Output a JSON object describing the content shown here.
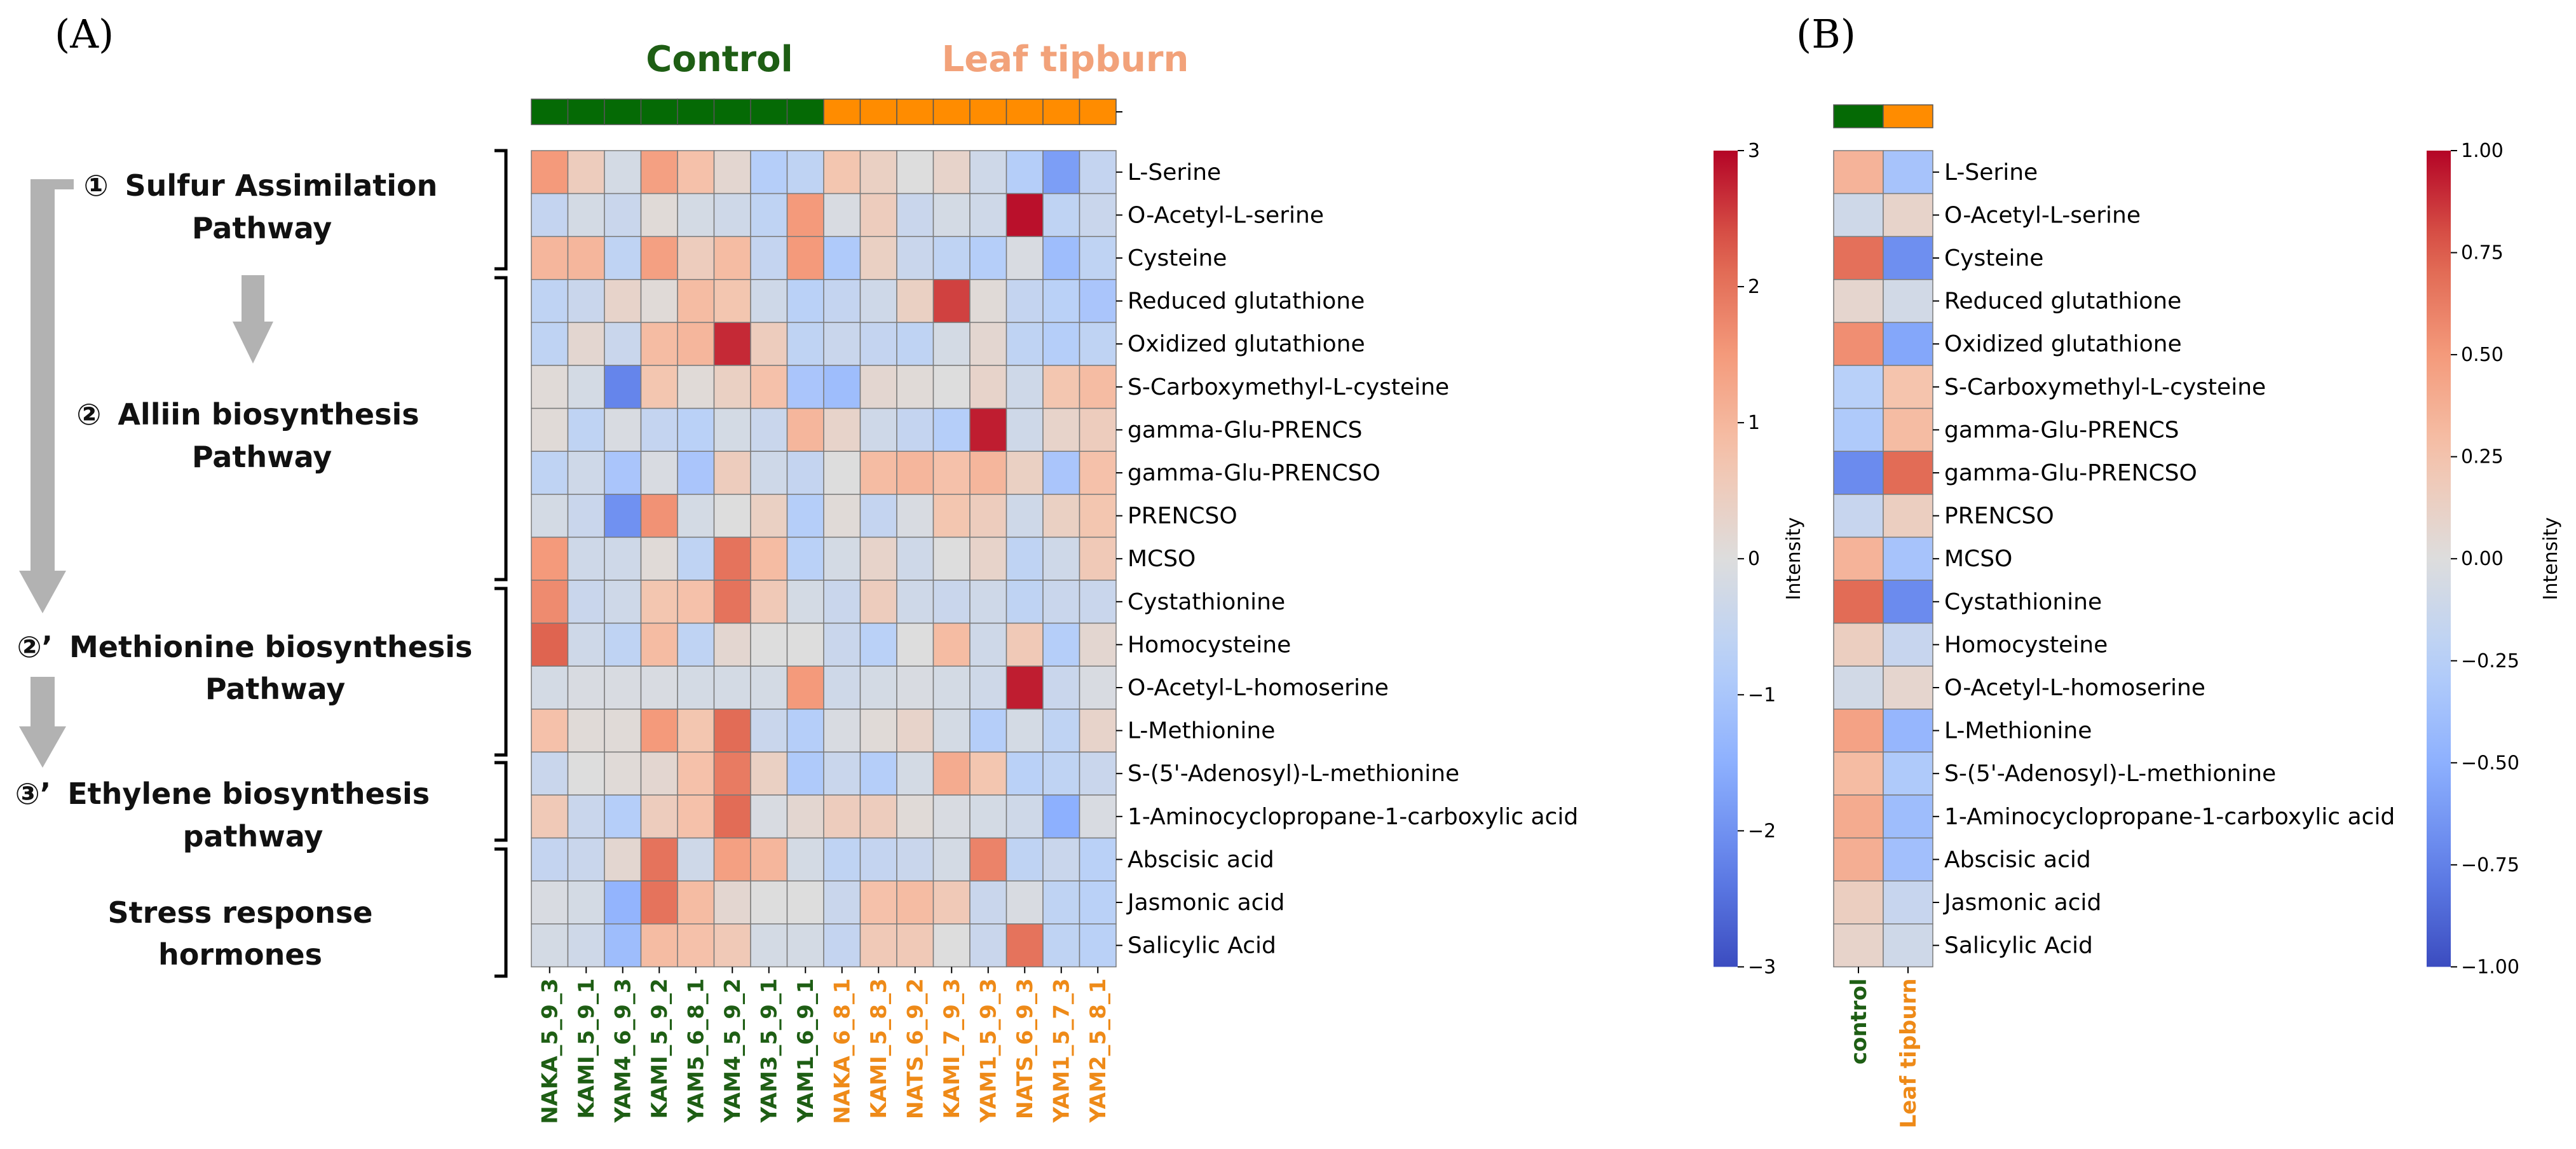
{
  "panels": {
    "a": "(A)",
    "b": "(B)"
  },
  "groups": {
    "control": "Control",
    "tipburn": "Leaf tipburn"
  },
  "colors": {
    "control": "#1e5e14",
    "control_bar": "#056a05",
    "tipburn_text": "#f2a27a",
    "tipburn_bar": "#ff8c00",
    "tipburn_label": "#ee8a18",
    "arrow": "#b2b2b2"
  },
  "pathways": [
    {
      "number": "①",
      "line1": "Sulfur Assimilation",
      "line2": "Pathway"
    },
    {
      "number": "②",
      "line1": "Alliin  biosynthesis",
      "line2": "Pathway"
    },
    {
      "number": "②’",
      "line1": "Methionine biosynthesis",
      "line2": "Pathway"
    },
    {
      "number": "③’",
      "line1": "Ethylene biosynthesis",
      "line2": "pathway"
    },
    {
      "number": "",
      "line1": "Stress response",
      "line2": "hormones"
    }
  ],
  "chart_data": [
    {
      "type": "heatmap",
      "panel": "A",
      "columns": [
        "NAKA_5_9_3",
        "KAMI_5_9_1",
        "YAM4_6_9_3",
        "KAMI_5_9_2",
        "YAM5_6_8_1",
        "YAM4_5_9_2",
        "YAM3_5_9_1",
        "YAM1_6_9_1",
        "NAKA_6_8_1",
        "KAMI_5_8_3",
        "NATS_6_9_2",
        "KAMI_7_9_3",
        "YAM1_5_9_3",
        "NATS_6_9_3",
        "YAM1_5_7_3",
        "YAM2_5_8_1"
      ],
      "column_groups": [
        "control",
        "control",
        "control",
        "control",
        "control",
        "control",
        "control",
        "control",
        "tipburn",
        "tipburn",
        "tipburn",
        "tipburn",
        "tipburn",
        "tipburn",
        "tipburn",
        "tipburn"
      ],
      "rows": [
        "L-Serine",
        "O-Acetyl-L-serine",
        "Cysteine",
        "Reduced glutathione",
        "Oxidized glutathione",
        "S-Carboxymethyl-L-cysteine",
        "gamma-Glu-PRENCS",
        "gamma-Glu-PRENCSO",
        "PRENCSO",
        "MCSO",
        "Cystathionine",
        "Homocysteine",
        "O-Acetyl-L-homoserine",
        "L-Methionine",
        "S-(5'-Adenosyl)-L-methionine",
        "1-Aminocyclopropane-1-carboxylic acid",
        "Abscisic acid",
        "Jasmonic acid",
        "Salicylic Acid"
      ],
      "values": [
        [
          1.5,
          0.5,
          -0.2,
          1.4,
          0.8,
          0.2,
          -0.8,
          -0.6,
          0.7,
          0.4,
          0.0,
          0.3,
          -0.3,
          -0.8,
          -1.8,
          -0.5
        ],
        [
          -0.5,
          -0.2,
          -0.4,
          0.1,
          -0.2,
          -0.3,
          -0.6,
          1.5,
          -0.1,
          0.5,
          -0.4,
          -0.2,
          -0.3,
          2.9,
          -0.6,
          -0.4
        ],
        [
          1.0,
          1.0,
          -0.6,
          1.4,
          0.5,
          0.9,
          -0.5,
          1.5,
          -0.9,
          0.4,
          -0.4,
          -0.6,
          -0.8,
          -0.1,
          -1.2,
          -0.6
        ],
        [
          -0.6,
          -0.4,
          0.3,
          0.1,
          0.9,
          0.7,
          -0.3,
          -0.7,
          -0.5,
          -0.3,
          0.4,
          2.5,
          0.1,
          -0.5,
          -0.7,
          -1.0
        ],
        [
          -0.6,
          0.2,
          -0.4,
          0.9,
          1.0,
          2.7,
          0.5,
          -0.6,
          -0.4,
          -0.5,
          -0.6,
          -0.2,
          0.2,
          -0.6,
          -0.8,
          -0.6
        ],
        [
          0.1,
          -0.2,
          -2.2,
          0.7,
          0.1,
          0.4,
          0.8,
          -1.0,
          -1.2,
          0.2,
          0.1,
          0.0,
          0.3,
          -0.3,
          0.7,
          0.9
        ],
        [
          0.1,
          -0.6,
          -0.1,
          -0.5,
          -0.7,
          -0.2,
          -0.4,
          1.0,
          0.3,
          -0.3,
          -0.5,
          -0.8,
          2.8,
          -0.3,
          0.3,
          0.5
        ],
        [
          -0.6,
          -0.3,
          -1.0,
          -0.1,
          -1.0,
          0.5,
          -0.3,
          -0.5,
          0.0,
          0.9,
          1.0,
          0.8,
          1.0,
          0.4,
          -1.0,
          0.8
        ],
        [
          -0.2,
          -0.4,
          -2.0,
          1.6,
          -0.2,
          0.0,
          0.4,
          -0.8,
          0.1,
          -0.5,
          -0.1,
          0.7,
          0.5,
          -0.3,
          0.4,
          0.7
        ],
        [
          1.5,
          -0.3,
          -0.3,
          0.1,
          -0.6,
          2.0,
          0.9,
          -0.7,
          -0.2,
          0.3,
          -0.3,
          0.0,
          0.3,
          -0.6,
          -0.3,
          0.6
        ],
        [
          1.7,
          -0.4,
          -0.3,
          0.7,
          0.8,
          2.0,
          0.6,
          -0.2,
          -0.4,
          0.5,
          -0.3,
          -0.4,
          -0.3,
          -0.6,
          -0.4,
          -0.4
        ],
        [
          2.2,
          -0.3,
          -0.6,
          0.9,
          -0.6,
          0.2,
          0.0,
          0.0,
          -0.4,
          -0.7,
          0.0,
          0.9,
          -0.3,
          0.6,
          -0.8,
          0.2
        ],
        [
          -0.2,
          -0.1,
          -0.1,
          -0.1,
          -0.2,
          -0.2,
          -0.2,
          1.5,
          -0.3,
          -0.2,
          -0.1,
          -0.2,
          -0.3,
          2.8,
          -0.4,
          -0.1
        ],
        [
          0.8,
          0.1,
          0.1,
          1.5,
          0.7,
          2.1,
          -0.4,
          -0.8,
          -0.1,
          0.1,
          0.3,
          -0.2,
          -0.8,
          -0.2,
          -0.6,
          0.3
        ],
        [
          -0.4,
          0.0,
          0.1,
          0.2,
          0.8,
          1.9,
          0.4,
          -0.9,
          -0.4,
          -0.8,
          -0.2,
          1.2,
          0.7,
          -0.7,
          -0.6,
          -0.4
        ],
        [
          0.6,
          -0.4,
          -0.8,
          0.5,
          0.8,
          2.1,
          -0.1,
          0.2,
          0.5,
          0.5,
          0.1,
          -0.1,
          -0.2,
          -0.3,
          -1.5,
          -0.1
        ],
        [
          -0.5,
          -0.4,
          0.2,
          2.0,
          -0.3,
          1.4,
          1.0,
          -0.2,
          -0.6,
          -0.5,
          -0.4,
          -0.2,
          1.8,
          -0.6,
          -0.4,
          -0.7
        ],
        [
          -0.1,
          -0.2,
          -1.4,
          2.0,
          0.9,
          0.2,
          0.0,
          0.0,
          -0.4,
          0.8,
          0.9,
          0.6,
          -0.4,
          -0.1,
          -0.6,
          -0.7
        ],
        [
          -0.2,
          -0.3,
          -1.2,
          0.9,
          0.8,
          0.6,
          -0.2,
          -0.2,
          -0.5,
          0.6,
          0.6,
          0.0,
          -0.4,
          2.0,
          -0.6,
          -0.7
        ]
      ],
      "vmin": -3,
      "vmax": 3,
      "colorbar_label": "Intensity",
      "colorbar_ticks": [
        "3",
        "2",
        "1",
        "0",
        "−1",
        "−2",
        "−3"
      ],
      "colormap": "coolwarm"
    },
    {
      "type": "heatmap",
      "panel": "B",
      "columns": [
        "control",
        "Leaf tipburn"
      ],
      "column_groups": [
        "control",
        "tipburn"
      ],
      "rows": [
        "L-Serine",
        "O-Acetyl-L-serine",
        "Cysteine",
        "Reduced glutathione",
        "Oxidized glutathione",
        "S-Carboxymethyl-L-cysteine",
        "gamma-Glu-PRENCS",
        "gamma-Glu-PRENCSO",
        "PRENCSO",
        "MCSO",
        "Cystathionine",
        "Homocysteine",
        "O-Acetyl-L-homoserine",
        "L-Methionine",
        "S-(5'-Adenosyl)-L-methionine",
        "1-Aminocyclopropane-1-carboxylic acid",
        "Abscisic acid",
        "Jasmonic acid",
        "Salicylic Acid"
      ],
      "values": [
        [
          0.35,
          -0.35
        ],
        [
          -0.1,
          0.1
        ],
        [
          0.68,
          -0.68
        ],
        [
          0.08,
          -0.08
        ],
        [
          0.55,
          -0.55
        ],
        [
          -0.25,
          0.25
        ],
        [
          -0.3,
          0.3
        ],
        [
          -0.7,
          0.7
        ],
        [
          -0.15,
          0.15
        ],
        [
          0.35,
          -0.35
        ],
        [
          0.7,
          -0.7
        ],
        [
          0.15,
          -0.15
        ],
        [
          -0.08,
          0.08
        ],
        [
          0.45,
          -0.45
        ],
        [
          0.3,
          -0.3
        ],
        [
          0.4,
          -0.4
        ],
        [
          0.38,
          -0.38
        ],
        [
          0.15,
          -0.15
        ],
        [
          0.1,
          -0.1
        ]
      ],
      "vmin": -1,
      "vmax": 1,
      "colorbar_label": "Intensity",
      "colorbar_ticks": [
        "1.00",
        "0.75",
        "0.50",
        "0.25",
        "0.00",
        "−0.25",
        "−0.50",
        "−0.75",
        "−1.00"
      ],
      "colormap": "coolwarm"
    }
  ]
}
